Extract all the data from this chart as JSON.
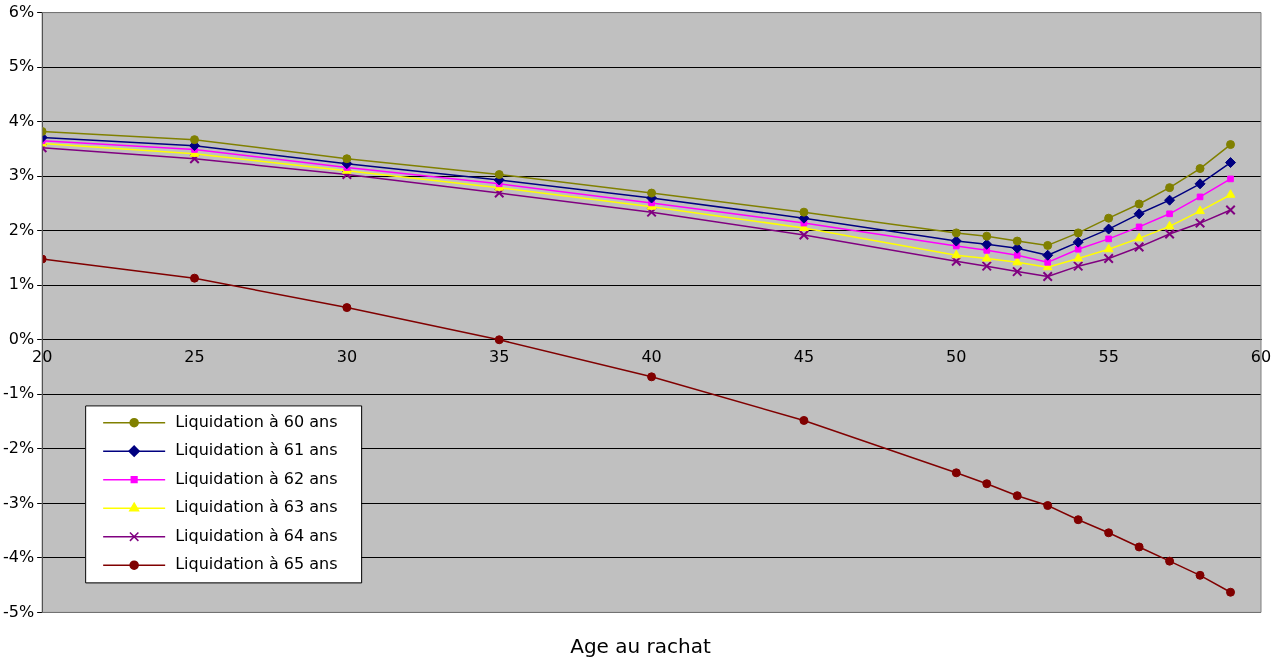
{
  "chart_data": {
    "type": "line",
    "xlabel": "Age au rachat",
    "x": [
      20,
      25,
      30,
      35,
      40,
      45,
      50,
      51,
      52,
      53,
      54,
      55,
      56,
      57,
      58,
      59
    ],
    "series": [
      {
        "name": "Liquidation à 60 ans",
        "color": "#808000",
        "marker": "circle",
        "values": [
          3.82,
          3.67,
          3.32,
          3.03,
          2.69,
          2.34,
          1.96,
          1.9,
          1.81,
          1.73,
          1.96,
          2.23,
          2.49,
          2.79,
          3.14,
          3.58
        ]
      },
      {
        "name": "Liquidation à 61 ans",
        "color": "#000080",
        "marker": "diamond",
        "values": [
          3.71,
          3.56,
          3.23,
          2.93,
          2.6,
          2.23,
          1.81,
          1.75,
          1.68,
          1.55,
          1.79,
          2.03,
          2.31,
          2.56,
          2.86,
          3.25
        ]
      },
      {
        "name": "Liquidation à 62 ans",
        "color": "#ff00ff",
        "marker": "square",
        "values": [
          3.65,
          3.49,
          3.16,
          2.86,
          2.51,
          2.14,
          1.72,
          1.64,
          1.55,
          1.42,
          1.66,
          1.85,
          2.07,
          2.31,
          2.62,
          2.95
        ]
      },
      {
        "name": "Liquidation à 63 ans",
        "color": "#ffff00",
        "marker": "triangle",
        "values": [
          3.6,
          3.41,
          3.1,
          2.79,
          2.44,
          2.05,
          1.55,
          1.49,
          1.42,
          1.33,
          1.49,
          1.66,
          1.86,
          2.08,
          2.36,
          2.66
        ]
      },
      {
        "name": "Liquidation à 64 ans",
        "color": "#800080",
        "marker": "cross",
        "values": [
          3.52,
          3.32,
          3.03,
          2.69,
          2.34,
          1.92,
          1.44,
          1.35,
          1.25,
          1.16,
          1.35,
          1.49,
          1.7,
          1.94,
          2.14,
          2.38
        ]
      },
      {
        "name": "Liquidation à 65 ans",
        "color": "#800000",
        "marker": "circle",
        "values": [
          1.48,
          1.13,
          0.59,
          0,
          -0.68,
          -1.48,
          -2.44,
          -2.64,
          -2.86,
          -3.04,
          -3.3,
          -3.54,
          -3.8,
          -4.06,
          -4.32,
          -4.63
        ]
      }
    ],
    "xlim": [
      20,
      60
    ],
    "xticks": [
      20,
      25,
      30,
      35,
      40,
      45,
      50,
      55,
      60
    ],
    "ylim": [
      -5,
      6
    ],
    "yticks": [
      {
        "value": -5,
        "label": "-5%"
      },
      {
        "value": -4,
        "label": "-4%"
      },
      {
        "value": -3,
        "label": "-3%"
      },
      {
        "value": -2,
        "label": "-2%"
      },
      {
        "value": -1,
        "label": "-1%"
      },
      {
        "value": 0,
        "label": "0%"
      },
      {
        "value": 1,
        "label": "1%"
      },
      {
        "value": 2,
        "label": "2%"
      },
      {
        "value": 3,
        "label": "3%"
      },
      {
        "value": 4,
        "label": "4%"
      },
      {
        "value": 5,
        "label": "5%"
      },
      {
        "value": 6,
        "label": "6%"
      }
    ],
    "grid": "y",
    "legend": "bottom left"
  }
}
